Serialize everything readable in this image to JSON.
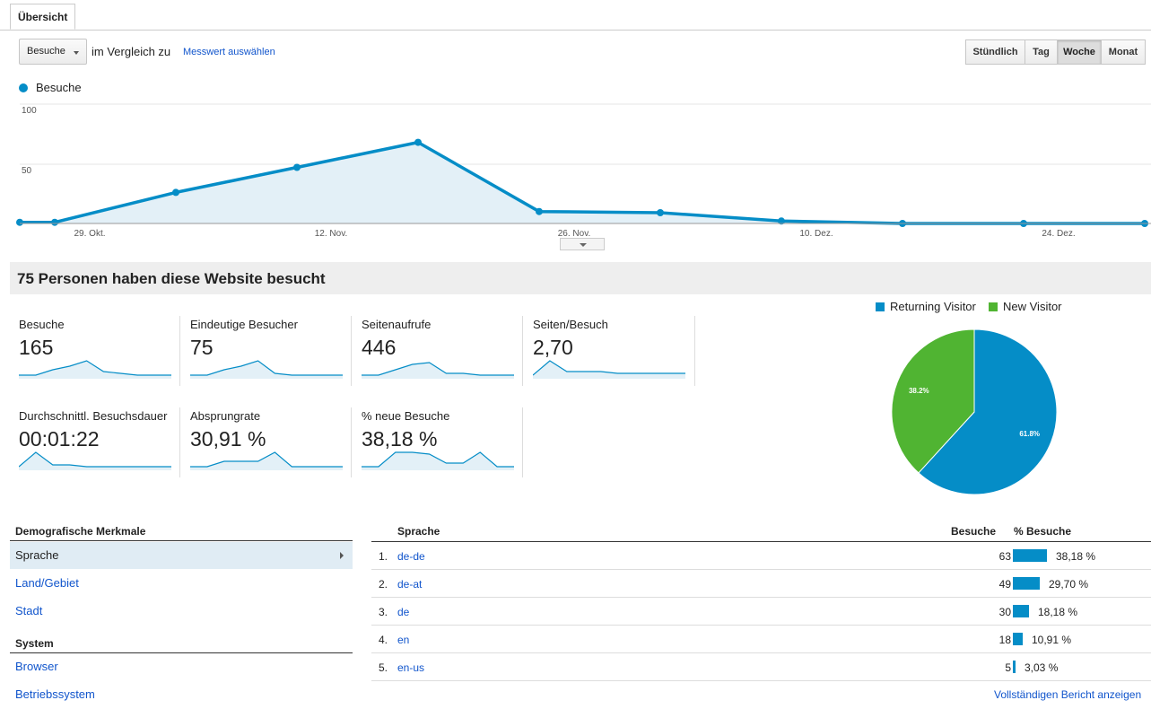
{
  "tabs": {
    "overview": "Übersicht"
  },
  "metric_select": {
    "value": "Besuche",
    "compare_text": "im Vergleich zu",
    "select_metric_link": "Messwert auswählen"
  },
  "period_buttons": [
    {
      "label": "Stündlich",
      "active": false
    },
    {
      "label": "Tag",
      "active": false
    },
    {
      "label": "Woche",
      "active": true
    },
    {
      "label": "Monat",
      "active": false
    }
  ],
  "colors": {
    "accent": "#058dc7",
    "new_visitor": "#50b432",
    "link": "#1155cc"
  },
  "chart_data": {
    "type": "area",
    "title": "",
    "legend": [
      "Besuche"
    ],
    "legend_position": "top-left",
    "grid": true,
    "ylim": [
      0,
      100
    ],
    "yticks": [
      "100",
      "50"
    ],
    "xticks": [
      "29. Okt.",
      "12. Nov.",
      "26. Nov.",
      "10. Dez.",
      "24. Dez."
    ],
    "series": [
      {
        "name": "Besuche",
        "x": [
          "2012-10-22",
          "2012-10-28",
          "2012-11-04",
          "2012-11-11",
          "2012-11-18",
          "2012-11-25",
          "2012-12-02",
          "2012-12-09",
          "2012-12-16",
          "2012-12-23",
          "2012-12-30"
        ],
        "values": [
          1,
          1,
          26,
          47,
          68,
          10,
          9,
          2,
          0,
          0,
          0
        ]
      }
    ]
  },
  "summary_title": "75 Personen haben diese Website besucht",
  "kpis": [
    {
      "label": "Besuche",
      "value": "165",
      "spark": [
        1,
        1,
        4,
        6,
        9,
        3,
        2,
        1,
        1,
        1
      ]
    },
    {
      "label": "Eindeutige Besucher",
      "value": "75",
      "spark": [
        1,
        1,
        4,
        6,
        9,
        2,
        1,
        1,
        1,
        1
      ]
    },
    {
      "label": "Seitenaufrufe",
      "value": "446",
      "spark": [
        1,
        1,
        4,
        7,
        8,
        2,
        2,
        1,
        1,
        1
      ]
    },
    {
      "label": "Seiten/Besuch",
      "value": "2,70",
      "spark": [
        1,
        9,
        3,
        3,
        3,
        2,
        2,
        2,
        2,
        2
      ]
    },
    {
      "label": "Durchschnittl. Besuchsdauer",
      "value": "00:01:22",
      "spark": [
        1,
        9,
        2,
        2,
        1,
        1,
        1,
        1,
        1,
        1
      ]
    },
    {
      "label": "Absprungrate",
      "value": "30,91 %",
      "spark": [
        1,
        1,
        4,
        4,
        4,
        9,
        1,
        1,
        1,
        1
      ]
    },
    {
      "label": "% neue Besuche",
      "value": "38,18 %",
      "spark": [
        1,
        1,
        9,
        9,
        8,
        3,
        3,
        9,
        1,
        1
      ]
    }
  ],
  "pie": {
    "legend": [
      "Returning Visitor",
      "New Visitor"
    ],
    "slices": [
      {
        "name": "Returning Visitor",
        "value": 61.8,
        "label": "61.8%"
      },
      {
        "name": "New Visitor",
        "value": 38.2,
        "label": "38.2%"
      }
    ]
  },
  "demographics": {
    "heading": "Demografische Merkmale",
    "items": [
      "Sprache",
      "Land/Gebiet",
      "Stadt"
    ],
    "system_heading": "System",
    "system_items": [
      "Browser",
      "Betriebssystem"
    ]
  },
  "table": {
    "headers": {
      "dimension": "Sprache",
      "visits": "Besuche",
      "pct": "% Besuche"
    },
    "rows": [
      {
        "num": "1.",
        "lang": "de-de",
        "visits": "63",
        "pct": "38,18 %",
        "share": 0.3818
      },
      {
        "num": "2.",
        "lang": "de-at",
        "visits": "49",
        "pct": "29,70 %",
        "share": 0.297
      },
      {
        "num": "3.",
        "lang": "de",
        "visits": "30",
        "pct": "18,18 %",
        "share": 0.1818
      },
      {
        "num": "4.",
        "lang": "en",
        "visits": "18",
        "pct": "10,91 %",
        "share": 0.1091
      },
      {
        "num": "5.",
        "lang": "en-us",
        "visits": "5",
        "pct": "3,03 %",
        "share": 0.0303
      }
    ],
    "full_report_link": "Vollständigen Bericht anzeigen"
  }
}
